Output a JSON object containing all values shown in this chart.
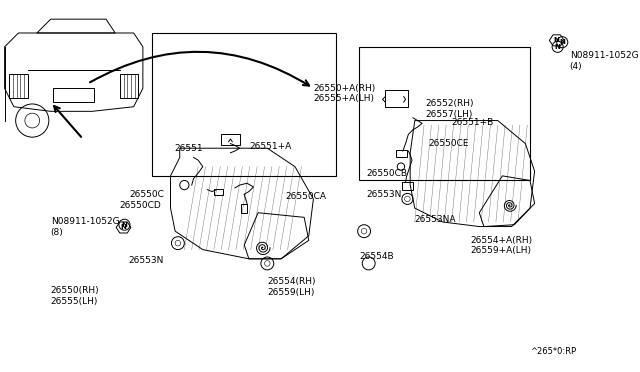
{
  "title": "",
  "background_color": "#ffffff",
  "diagram_color": "#000000",
  "light_gray": "#cccccc",
  "part_labels": {
    "N_top_right": "N08911-1052G\n(4)",
    "N_mid_left": "N08911-1052G\n(8)",
    "p26550_rh_lh": "26550(RH)\n26555(LH)",
    "p26550_plus_a": "26550+A(RH)\n26555+A(LH)",
    "p26552": "26552(RH)\n26557(LH)",
    "p26551_b": "26551+B",
    "p26550ce": "26550CE",
    "p26550cb": "26550CB",
    "p26553n_r": "26553N",
    "p26553na": "26553NA",
    "p26554_a": "26554+A(RH)\n26559+A(LH)",
    "p26554b": "26554B",
    "p26551": "26551",
    "p26551_a": "26551+A",
    "p26550c": "26550C",
    "p26550cd": "26550CD",
    "p26550ca": "26550CA",
    "p26553n_l": "26553N",
    "p26554_rh": "26554(RH)\n26559(LH)",
    "watermark": "^265*0:RP"
  }
}
